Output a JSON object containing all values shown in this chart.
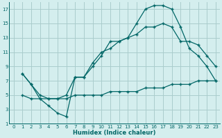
{
  "xlabel": "Humidex (Indice chaleur)",
  "bg_color": "#d4eeee",
  "grid_color": "#aacccc",
  "line_color": "#006666",
  "xlim": [
    -0.5,
    23.5
  ],
  "ylim": [
    1,
    18
  ],
  "xticks": [
    0,
    1,
    2,
    3,
    4,
    5,
    6,
    7,
    8,
    9,
    10,
    11,
    12,
    13,
    14,
    15,
    16,
    17,
    18,
    19,
    20,
    21,
    22,
    23
  ],
  "yticks": [
    1,
    3,
    5,
    7,
    9,
    11,
    13,
    15,
    17
  ],
  "line1_x": [
    1,
    2,
    3,
    4,
    5,
    6,
    7,
    8,
    9,
    10,
    11,
    12,
    13,
    14,
    15,
    16,
    17,
    18,
    19,
    20,
    21,
    22,
    23
  ],
  "line1_y": [
    8.0,
    6.5,
    4.5,
    3.5,
    2.5,
    2.0,
    7.5,
    7.5,
    9.0,
    10.5,
    12.5,
    12.5,
    13.0,
    15.0,
    17.0,
    17.5,
    17.5,
    17.0,
    14.5,
    11.5,
    10.5,
    9.0,
    7.0
  ],
  "line2_x": [
    1,
    2,
    3,
    4,
    5,
    6,
    7,
    8,
    9,
    10,
    11,
    12,
    13,
    14,
    15,
    16,
    17,
    18,
    19,
    20,
    21,
    22,
    23
  ],
  "line2_y": [
    8.0,
    6.5,
    5.0,
    4.5,
    4.5,
    5.0,
    7.5,
    7.5,
    9.5,
    11.0,
    11.5,
    12.5,
    13.0,
    13.5,
    14.5,
    14.5,
    15.0,
    14.5,
    12.5,
    12.5,
    12.0,
    10.5,
    9.0
  ],
  "line3_x": [
    1,
    2,
    3,
    4,
    5,
    6,
    7,
    8,
    9,
    10,
    11,
    12,
    13,
    14,
    15,
    16,
    17,
    18,
    19,
    20,
    21,
    22,
    23
  ],
  "line3_y": [
    5.0,
    4.5,
    4.5,
    4.5,
    4.5,
    4.5,
    5.0,
    5.0,
    5.0,
    5.0,
    5.5,
    5.5,
    5.5,
    5.5,
    6.0,
    6.0,
    6.0,
    6.5,
    6.5,
    6.5,
    7.0,
    7.0,
    7.0
  ]
}
